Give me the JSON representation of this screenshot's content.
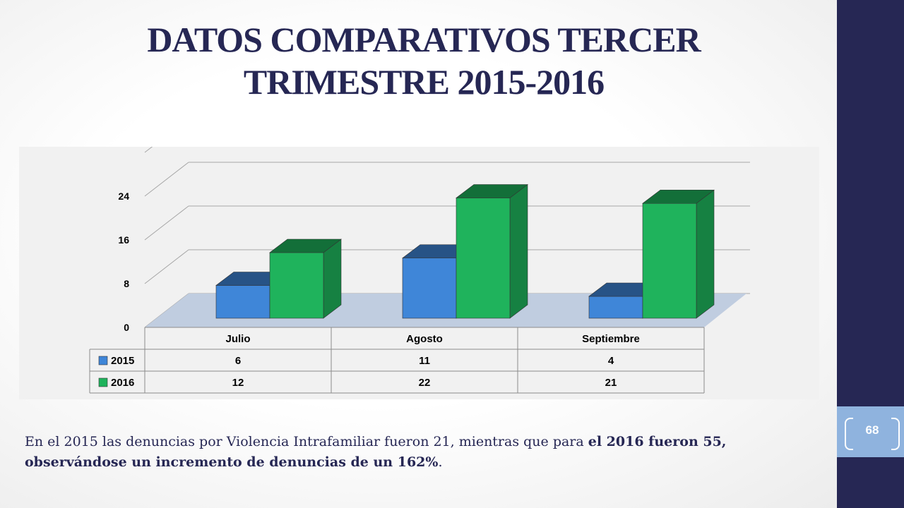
{
  "title": "DATOS COMPARATIVOS TERCER TRIMESTRE 2015-2016",
  "page_number": "68",
  "caption": {
    "part1": "En el 2015 las denuncias por Violencia Intrafamiliar fueron 21, mientras que para ",
    "part2_bold": "el 2016  fueron 55, observándose un incremento de denuncias de un 162%",
    "part3": "."
  },
  "colors": {
    "series_2015": "#3f86d8",
    "series_2016": "#1fb35c",
    "band": "#262754",
    "floor": "#c0cde0"
  },
  "chart_data": {
    "type": "bar",
    "categories": [
      "Julio",
      "Agosto",
      "Septiembre"
    ],
    "series": [
      {
        "name": "2015",
        "values": [
          6,
          11,
          4
        ]
      },
      {
        "name": "2016",
        "values": [
          12,
          22,
          21
        ]
      }
    ],
    "y_ticks": [
      "0",
      "8",
      "16",
      "24"
    ],
    "ylim": [
      0,
      32
    ],
    "grid": true,
    "legend": "data-table",
    "three_d": true
  }
}
